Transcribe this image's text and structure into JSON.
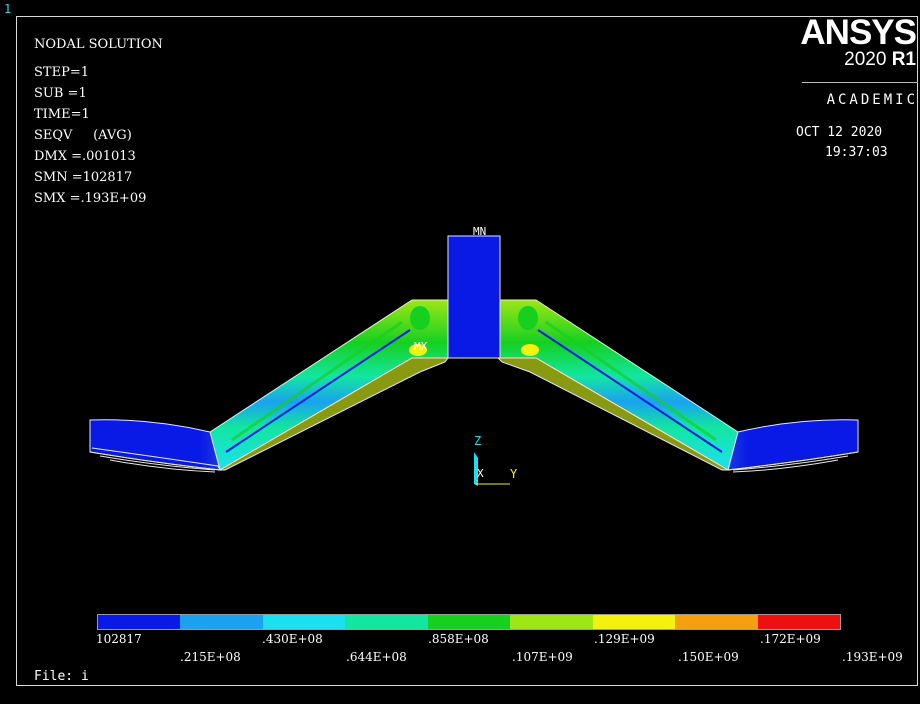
{
  "window_number": "1",
  "plot_info": {
    "title": "NODAL SOLUTION",
    "lines": [
      "STEP=1",
      "SUB =1",
      "TIME=1",
      "SEQV     (AVG)",
      "DMX =.001013",
      "SMN =102817",
      "SMX =.193E+09"
    ]
  },
  "brand": {
    "name": "ANSYS",
    "version_year": "2020",
    "version_release": "R1",
    "edition": "ACADEMIC",
    "date": "OCT 12 2020",
    "time": "19:37:03"
  },
  "labels": {
    "min": "MN",
    "max": "MX"
  },
  "triad": {
    "z": "Z",
    "x": "X",
    "y": "Y"
  },
  "legend": {
    "colors": [
      "#0a1ae6",
      "#1aa2f0",
      "#1ce0f0",
      "#12e6a0",
      "#16d020",
      "#9ee616",
      "#f2f20e",
      "#f6a010",
      "#ee1010"
    ],
    "top_ticks": [
      "102817",
      ".430E+08",
      ".858E+08",
      ".129E+09",
      ".172E+09"
    ],
    "bottom_ticks": [
      ".215E+08",
      ".644E+08",
      ".107E+09",
      ".150E+09",
      ".193E+09"
    ]
  },
  "file_label": "File: i",
  "palette": {
    "blue": "#0a1ae6",
    "light_blue": "#1aa2f0",
    "cyan": "#1ce0f0",
    "teal": "#12e6a0",
    "green": "#16d020",
    "lime": "#9ee616",
    "yellow": "#f2f20e",
    "olive": "#8a9a10",
    "white_edge": "#e8e8e8"
  }
}
